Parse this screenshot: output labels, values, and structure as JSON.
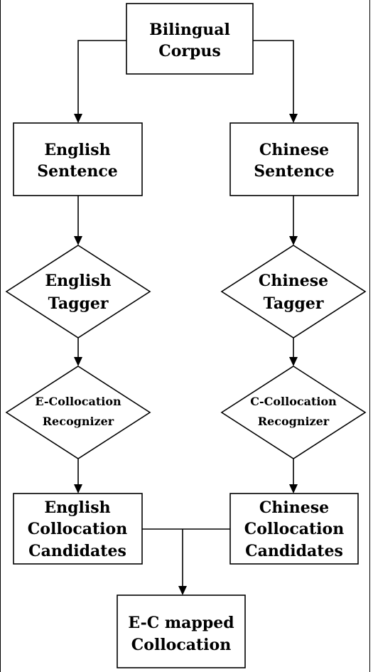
{
  "nodes": {
    "bilingual_corpus": [
      "Bilingual",
      "Corpus"
    ],
    "english_sentence": [
      "English",
      "Sentence"
    ],
    "chinese_sentence": [
      "Chinese",
      "Sentence"
    ],
    "english_tagger": [
      "English",
      "Tagger"
    ],
    "chinese_tagger": [
      "Chinese",
      "Tagger"
    ],
    "e_collocation_recognizer": [
      "E-Collocation",
      "Recognizer"
    ],
    "c_collocation_recognizer": [
      "C-Collocation",
      "Recognizer"
    ],
    "english_collocation_candidates": [
      "English",
      "Collocation",
      "Candidates"
    ],
    "chinese_collocation_candidates": [
      "Chinese",
      "Collocation",
      "Candidates"
    ],
    "ec_mapped_collocation": [
      "E-C mapped",
      "Collocation"
    ]
  },
  "edges": [
    [
      "bilingual_corpus",
      "english_sentence"
    ],
    [
      "bilingual_corpus",
      "chinese_sentence"
    ],
    [
      "english_sentence",
      "english_tagger"
    ],
    [
      "chinese_sentence",
      "chinese_tagger"
    ],
    [
      "english_tagger",
      "e_collocation_recognizer"
    ],
    [
      "chinese_tagger",
      "c_collocation_recognizer"
    ],
    [
      "e_collocation_recognizer",
      "english_collocation_candidates"
    ],
    [
      "c_collocation_recognizer",
      "chinese_collocation_candidates"
    ],
    [
      "english_collocation_candidates",
      "ec_mapped_collocation"
    ],
    [
      "chinese_collocation_candidates",
      "ec_mapped_collocation"
    ]
  ]
}
